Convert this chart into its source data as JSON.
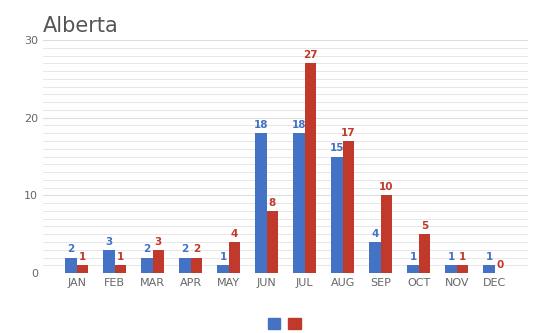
{
  "title": "Alberta",
  "categories": [
    "JAN",
    "FEB",
    "MAR",
    "APR",
    "MAY",
    "JUN",
    "JUL",
    "AUG",
    "SEP",
    "OCT",
    "NOV",
    "DEC"
  ],
  "series_blue": [
    2,
    3,
    2,
    2,
    1,
    18,
    18,
    15,
    4,
    1,
    1,
    1
  ],
  "series_red": [
    1,
    1,
    3,
    2,
    4,
    8,
    27,
    17,
    10,
    5,
    1,
    0
  ],
  "blue_color": "#4472C4",
  "red_color": "#C0392B",
  "title_color": "#555555",
  "title_fontsize": 15,
  "ylim": [
    0,
    30
  ],
  "yticks_major": [
    0,
    10,
    20,
    30
  ],
  "yticks_minor": [
    1,
    2,
    3,
    4,
    5,
    6,
    7,
    8,
    9,
    10,
    11,
    12,
    13,
    14,
    15,
    16,
    17,
    18,
    19,
    20,
    21,
    22,
    23,
    24,
    25,
    26,
    27,
    28,
    29,
    30
  ],
  "bar_width": 0.3,
  "background_color": "#ffffff",
  "grid_color": "#dddddd",
  "label_fontsize": 7.5,
  "tick_label_color": "#666666",
  "tick_fontsize": 8
}
